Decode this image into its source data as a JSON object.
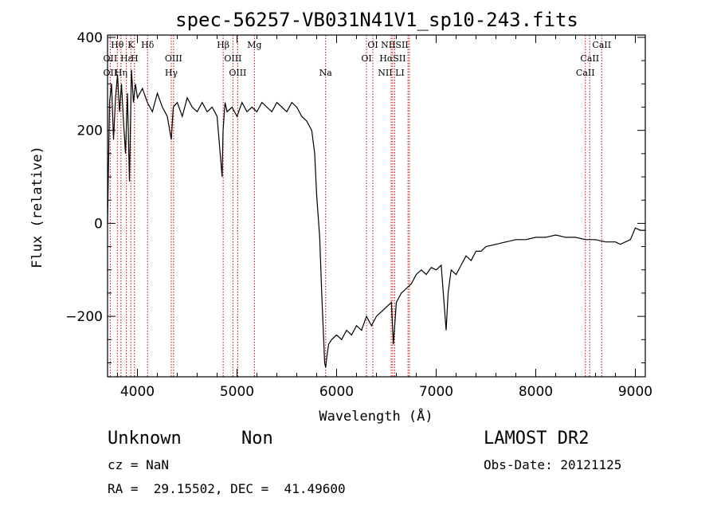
{
  "chart_data": {
    "type": "line",
    "title": "spec-56257-VB031N41V1_sp10-243.fits",
    "xlabel": "Wavelength (Å)",
    "ylabel": "Flux (relative)",
    "xlim": [
      3700,
      9100
    ],
    "ylim": [
      -330,
      405
    ],
    "xticks": [
      4000,
      5000,
      6000,
      7000,
      8000,
      9000
    ],
    "yticks": [
      -200,
      0,
      200,
      400
    ],
    "series": [
      {
        "x": [
          3700,
          3720,
          3740,
          3760,
          3780,
          3800,
          3820,
          3840,
          3860,
          3880,
          3900,
          3920,
          3940,
          3960,
          3980,
          4000,
          4050,
          4100,
          4150,
          4200,
          4250,
          4300,
          4340,
          4360,
          4400,
          4450,
          4500,
          4550,
          4600,
          4650,
          4700,
          4750,
          4800,
          4850,
          4860,
          4880,
          4900,
          4950,
          5000,
          5050,
          5100,
          5150,
          5200,
          5250,
          5300,
          5350,
          5400,
          5450,
          5500,
          5550,
          5600,
          5650,
          5700,
          5750,
          5780,
          5800,
          5830,
          5850,
          5870,
          5880,
          5890,
          5900,
          5920,
          5950,
          6000,
          6050,
          6100,
          6150,
          6200,
          6250,
          6300,
          6350,
          6400,
          6450,
          6500,
          6550,
          6570,
          6600,
          6650,
          6700,
          6750,
          6800,
          6850,
          6900,
          6950,
          7000,
          7050,
          7100,
          7120,
          7150,
          7200,
          7250,
          7300,
          7350,
          7400,
          7450,
          7500,
          7600,
          7700,
          7800,
          7900,
          8000,
          8100,
          8200,
          8300,
          8400,
          8500,
          8600,
          8700,
          8800,
          8850,
          8900,
          8950,
          9000,
          9050,
          9100
        ],
        "y": [
          0,
          260,
          300,
          180,
          270,
          320,
          240,
          300,
          220,
          150,
          280,
          90,
          330,
          260,
          300,
          270,
          290,
          260,
          240,
          280,
          250,
          230,
          180,
          250,
          260,
          230,
          270,
          250,
          240,
          260,
          240,
          250,
          230,
          100,
          200,
          260,
          240,
          250,
          230,
          260,
          240,
          250,
          240,
          260,
          250,
          240,
          260,
          250,
          240,
          260,
          250,
          230,
          220,
          200,
          150,
          60,
          -30,
          -150,
          -250,
          -300,
          -310,
          -290,
          -260,
          -250,
          -240,
          -250,
          -230,
          -240,
          -220,
          -230,
          -200,
          -220,
          -200,
          -190,
          -180,
          -170,
          -260,
          -170,
          -150,
          -140,
          -130,
          -110,
          -100,
          -110,
          -95,
          -100,
          -90,
          -230,
          -150,
          -100,
          -110,
          -90,
          -70,
          -80,
          -60,
          -60,
          -50,
          -45,
          -40,
          -35,
          -35,
          -30,
          -30,
          -25,
          -30,
          -30,
          -35,
          -35,
          -40,
          -40,
          -45,
          -40,
          -35,
          -10,
          -15,
          -15
        ]
      }
    ],
    "emission_lines": [
      {
        "label": "Hθ",
        "x": 3798,
        "row": 0
      },
      {
        "label": "K",
        "x": 3934,
        "row": 0
      },
      {
        "label": "Hδ",
        "x": 4102,
        "row": 0
      },
      {
        "label": "Hβ",
        "x": 4861,
        "row": 0
      },
      {
        "label": "Mg",
        "x": 5175,
        "row": 0
      },
      {
        "label": "OI",
        "x": 6364,
        "row": 0
      },
      {
        "label": "NIISII",
        "x": 6583,
        "row": 0
      },
      {
        "label": "CaII",
        "x": 8662,
        "row": 0
      },
      {
        "label": "OII",
        "x": 3727,
        "row": 1
      },
      {
        "label": "Hε",
        "x": 3889,
        "row": 1
      },
      {
        "label": "H",
        "x": 3970,
        "row": 1
      },
      {
        "label": "OIII",
        "x": 4363,
        "row": 1
      },
      {
        "label": "OIII",
        "x": 4959,
        "row": 1
      },
      {
        "label": "OI",
        "x": 6300,
        "row": 1
      },
      {
        "label": "HαSII",
        "x": 6563,
        "row": 1
      },
      {
        "label": "CaII",
        "x": 8542,
        "row": 1
      },
      {
        "label": "OII",
        "x": 3727,
        "row": 2
      },
      {
        "label": "Hη",
        "x": 3835,
        "row": 2
      },
      {
        "label": "Hγ",
        "x": 4340,
        "row": 2
      },
      {
        "label": "OIII",
        "x": 5007,
        "row": 2
      },
      {
        "label": "Na",
        "x": 5890,
        "row": 2
      },
      {
        "label": "NII LI",
        "x": 6548,
        "row": 2
      },
      {
        "label": "CaII",
        "x": 8498,
        "row": 2
      }
    ],
    "line_markers": [
      3727,
      3798,
      3835,
      3889,
      3934,
      3970,
      4102,
      4340,
      4363,
      4861,
      4959,
      5007,
      5175,
      5890,
      6300,
      6364,
      6548,
      6563,
      6583,
      6717,
      6731,
      8498,
      8542,
      8662
    ],
    "grid": false,
    "legend": "none"
  },
  "info": {
    "classification": "Unknown",
    "subclass": "Non",
    "survey": "LAMOST DR2",
    "cz": "cz = NaN",
    "obs_date": "Obs-Date: 20121125",
    "coords": "RA =  29.15502, DEC =  41.49600"
  },
  "colors": {
    "axis": "#000000",
    "spectrum": "#000000",
    "marker": "#cc0000"
  }
}
